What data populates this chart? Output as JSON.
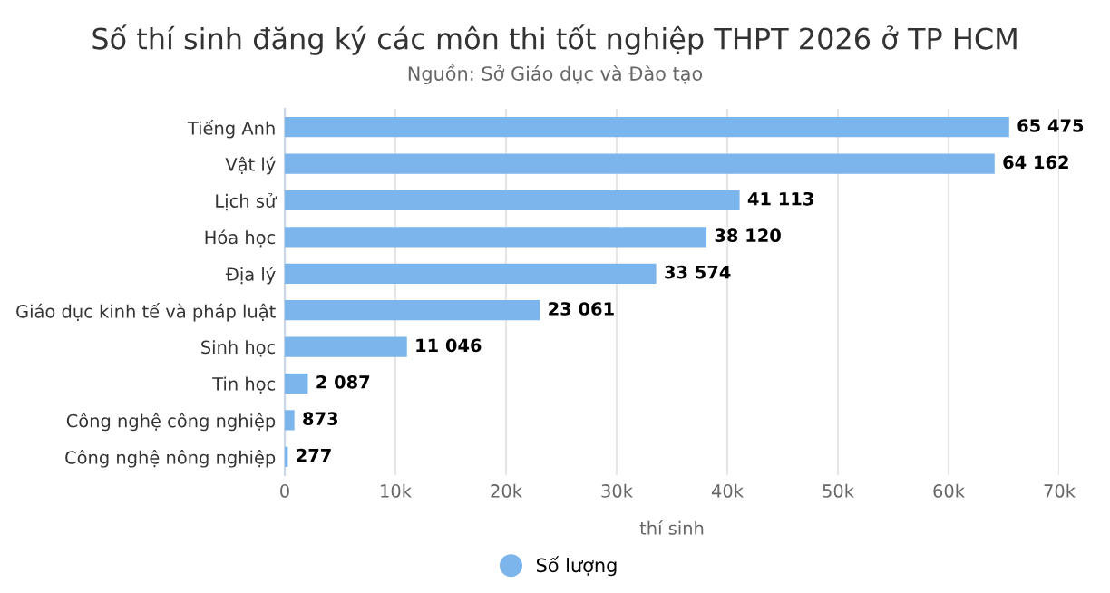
{
  "chart_data": {
    "type": "bar",
    "orientation": "horizontal",
    "title": "Số thí sinh đăng ký các môn thi tốt nghiệp THPT 2026 ở TP HCM",
    "subtitle": "Nguồn: Sở Giáo dục và Đào tạo",
    "xlabel": "thí sinh",
    "categories": [
      "Tiếng Anh",
      "Vật lý",
      "Lịch sử",
      "Hóa học",
      "Địa lý",
      "Giáo dục kinh tế và pháp luật",
      "Sinh học",
      "Tin học",
      "Công nghệ công nghiệp",
      "Công nghệ nông nghiệp"
    ],
    "series": [
      {
        "name": "Số lượng",
        "color": "#7cb5ec",
        "values": [
          65475,
          64162,
          41113,
          38120,
          33574,
          23061,
          11046,
          2087,
          873,
          277
        ],
        "value_labels": [
          "65 475",
          "64 162",
          "41 113",
          "38 120",
          "33 574",
          "23 061",
          "11 046",
          "2 087",
          "873",
          "277"
        ]
      }
    ],
    "xlim": [
      0,
      70000
    ],
    "xticks": [
      0,
      {
        "value": 10000,
        "label": "10k"
      },
      {
        "value": 20000,
        "label": "20k"
      },
      {
        "value": 30000,
        "label": "30k"
      },
      {
        "value": 40000,
        "label": "40k"
      },
      {
        "value": 50000,
        "label": "50k"
      },
      {
        "value": 60000,
        "label": "60k"
      },
      {
        "value": 70000,
        "label": "70k"
      }
    ],
    "grid": "x",
    "legend": "bottom",
    "marker": "circle"
  }
}
